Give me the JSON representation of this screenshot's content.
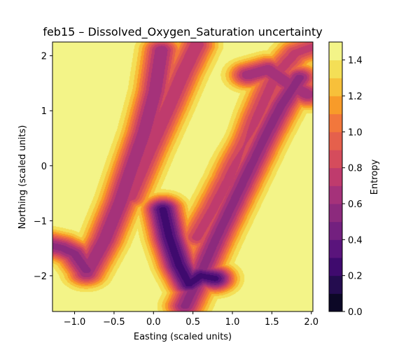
{
  "chart_data": {
    "type": "heatmap",
    "title": "feb15 – Dissolved_Oxygen_Saturation uncertainty",
    "xlabel": "Easting (scaled units)",
    "ylabel": "Northing (scaled units)",
    "xlim": [
      -1.28,
      2.02
    ],
    "ylim": [
      -2.65,
      2.25
    ],
    "xticks": [
      -1.0,
      -0.5,
      0.0,
      0.5,
      1.0,
      1.5,
      2.0
    ],
    "xtick_labels": [
      "−1.0",
      "−0.5",
      "0.0",
      "0.5",
      "1.0",
      "1.5",
      "2.0"
    ],
    "yticks": [
      -2,
      -1,
      0,
      1,
      2
    ],
    "ytick_labels": [
      "−2",
      "−1",
      "0",
      "1",
      "2"
    ],
    "colorbar": {
      "label": "Entropy",
      "range": [
        0.0,
        1.5
      ],
      "ticks": [
        0.0,
        0.2,
        0.4,
        0.6,
        0.8,
        1.0,
        1.2,
        1.4
      ],
      "tick_labels": [
        "0.0",
        "0.2",
        "0.4",
        "0.6",
        "0.8",
        "1.0",
        "1.2",
        "1.4"
      ],
      "levels": [
        0.0,
        0.1,
        0.2,
        0.3,
        0.4,
        0.5,
        0.6,
        0.7,
        0.8,
        0.9,
        1.0,
        1.1,
        1.2,
        1.3,
        1.4,
        1.5
      ],
      "colormap": "inferno",
      "colors": [
        "#000004",
        "#0c0826",
        "#240c4f",
        "#3f0a6e",
        "#5a147c",
        "#73207f",
        "#8c2a7d",
        "#a5327a",
        "#bf3b6d",
        "#d54c5c",
        "#e5604c",
        "#f2773c",
        "#f89b29",
        "#f7c03a",
        "#f4df56",
        "#f3f488"
      ]
    },
    "track_segments": [
      {
        "points": [
          [
            -0.85,
            -1.95
          ],
          [
            -0.62,
            -1.35
          ],
          [
            -0.42,
            -0.65
          ],
          [
            -0.28,
            -0.05
          ],
          [
            -0.12,
            0.6
          ],
          [
            0.02,
            1.35
          ],
          [
            0.1,
            2.1
          ]
        ],
        "peak": 0.6
      },
      {
        "points": [
          [
            -0.3,
            -0.55
          ],
          [
            -0.05,
            0.3
          ],
          [
            0.2,
            1.1
          ],
          [
            0.38,
            1.7
          ],
          [
            0.55,
            2.2
          ]
        ],
        "peak": 0.7
      },
      {
        "points": [
          [
            0.12,
            -0.8
          ],
          [
            0.2,
            -1.3
          ],
          [
            0.32,
            -1.8
          ],
          [
            0.45,
            -2.15
          ],
          [
            0.6,
            -2.0
          ],
          [
            0.78,
            -2.05
          ]
        ],
        "peak": 0.25
      },
      {
        "points": [
          [
            0.4,
            -2.55
          ],
          [
            0.6,
            -1.95
          ],
          [
            0.8,
            -1.3
          ],
          [
            1.0,
            -0.7
          ],
          [
            1.2,
            -0.1
          ],
          [
            1.4,
            0.5
          ],
          [
            1.62,
            1.1
          ],
          [
            1.85,
            1.6
          ]
        ],
        "peak": 0.55
      },
      {
        "points": [
          [
            0.55,
            -1.3
          ],
          [
            0.75,
            -0.8
          ],
          [
            0.95,
            -0.25
          ],
          [
            1.15,
            0.4
          ],
          [
            1.35,
            1.0
          ],
          [
            1.55,
            1.65
          ],
          [
            1.8,
            2.05
          ],
          [
            2.0,
            2.15
          ]
        ],
        "peak": 0.75
      },
      {
        "points": [
          [
            -1.3,
            -1.45
          ],
          [
            -1.15,
            -1.5
          ],
          [
            -1.0,
            -1.6
          ],
          [
            -0.85,
            -1.9
          ]
        ],
        "peak": 0.55
      },
      {
        "points": [
          [
            1.2,
            1.65
          ],
          [
            1.45,
            1.75
          ],
          [
            1.75,
            1.45
          ],
          [
            1.95,
            1.3
          ]
        ],
        "peak": 0.6
      }
    ],
    "high_plateau": {
      "center": [
        1.0,
        0.5
      ],
      "value": 1.45
    }
  }
}
